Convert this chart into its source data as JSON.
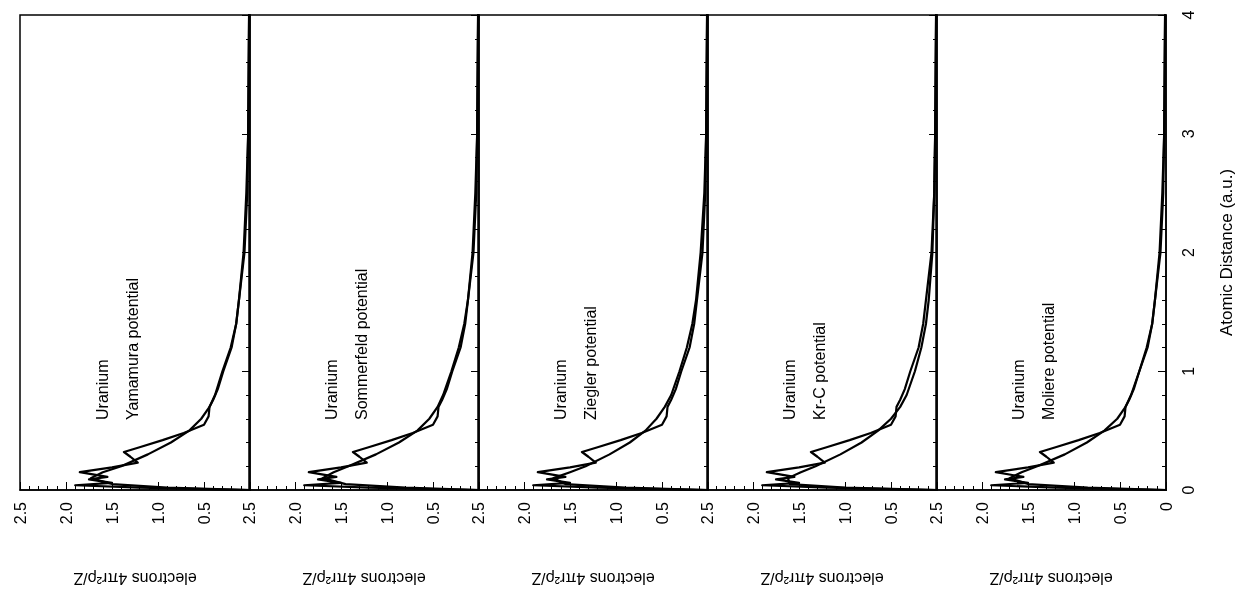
{
  "chart_data": [
    {
      "type": "line",
      "xlabel": "electrons 4πr²ρ/Z",
      "annotations": [
        "Uranium",
        "Yamamura potential"
      ],
      "xlim": [
        2.5,
        0
      ],
      "xticks": [
        2.5,
        {
          "value": 2,
          "label": "2.0"
        },
        1.5,
        {
          "value": 1,
          "label": "1.0"
        },
        0.5,
        {
          "value": 0,
          "label": null
        }
      ],
      "ylim": [
        0,
        4
      ],
      "tick_labels": "x",
      "grid": false,
      "series": [
        {
          "color": "#000000",
          "values": [
            0,
            0.02,
            0.04,
            0.06,
            0.09,
            0.11,
            0.15,
            0.19,
            0.23,
            0.28,
            0.32,
            0.36,
            0.42,
            0.48,
            0.55,
            0.62,
            0.7,
            0.76,
            0.85,
            1.0,
            1.2,
            1.4,
            1.6,
            2.0,
            2.5,
            3.0,
            4.0
          ],
          "x": [
            0,
            1.2,
            1.9,
            1.5,
            1.75,
            1.55,
            1.85,
            1.5,
            1.22,
            1.3,
            1.37,
            1.2,
            0.95,
            0.72,
            0.5,
            0.45,
            0.44,
            0.4,
            0.35,
            0.29,
            0.2,
            0.15,
            0.12,
            0.06,
            0.03,
            0.02,
            0.01
          ]
        },
        {
          "color": "#000000",
          "values": [
            0,
            0.02,
            0.05,
            0.1,
            0.15,
            0.2,
            0.3,
            0.4,
            0.5,
            0.6,
            0.7,
            0.8,
            1.0,
            1.2,
            1.4,
            1.6,
            2.0,
            2.5,
            3.0,
            4.0
          ],
          "x": [
            0,
            0.9,
            1.5,
            1.73,
            1.6,
            1.4,
            1.11,
            0.86,
            0.66,
            0.53,
            0.44,
            0.38,
            0.3,
            0.21,
            0.15,
            0.12,
            0.07,
            0.04,
            0.02,
            0.01
          ]
        }
      ]
    },
    {
      "type": "line",
      "xlabel": "electrons 4πr²ρ/Z",
      "annotations": [
        "Uranium",
        "Sommerfeld potential"
      ],
      "xlim": [
        2.5,
        0
      ],
      "xticks": [
        2.5,
        {
          "value": 2,
          "label": "2.0"
        },
        1.5,
        {
          "value": 1,
          "label": "1.0"
        },
        0.5,
        {
          "value": 0,
          "label": null
        }
      ],
      "ylim": [
        0,
        4
      ],
      "tick_labels": "x",
      "grid": false,
      "series": [
        {
          "color": "#000000",
          "values": [
            0,
            0.02,
            0.04,
            0.06,
            0.09,
            0.11,
            0.15,
            0.19,
            0.23,
            0.28,
            0.32,
            0.36,
            0.42,
            0.48,
            0.55,
            0.62,
            0.7,
            0.76,
            0.85,
            1.0,
            1.2,
            1.4,
            1.6,
            2.0,
            2.5,
            3.0,
            4.0
          ],
          "x": [
            0,
            1.2,
            1.9,
            1.5,
            1.75,
            1.55,
            1.85,
            1.5,
            1.22,
            1.3,
            1.37,
            1.2,
            0.95,
            0.72,
            0.5,
            0.45,
            0.44,
            0.4,
            0.35,
            0.29,
            0.2,
            0.15,
            0.12,
            0.06,
            0.03,
            0.02,
            0.01
          ]
        },
        {
          "color": "#000000",
          "values": [
            0,
            0.02,
            0.05,
            0.1,
            0.15,
            0.2,
            0.3,
            0.4,
            0.5,
            0.6,
            0.7,
            0.8,
            1.0,
            1.2,
            1.4,
            1.6,
            2.0,
            2.5,
            3.0,
            4.0
          ],
          "x": [
            0,
            0.8,
            1.45,
            1.7,
            1.58,
            1.42,
            1.12,
            0.87,
            0.67,
            0.54,
            0.45,
            0.39,
            0.3,
            0.22,
            0.16,
            0.12,
            0.07,
            0.04,
            0.02,
            0.01
          ]
        }
      ]
    },
    {
      "type": "line",
      "xlabel": "electrons 4πr²ρ/Z",
      "annotations": [
        "Uranium",
        "Ziegler potential"
      ],
      "xlim": [
        2.5,
        0
      ],
      "xticks": [
        2.5,
        {
          "value": 2,
          "label": "2.0"
        },
        1.5,
        {
          "value": 1,
          "label": "1.0"
        },
        0.5,
        {
          "value": 0,
          "label": null
        }
      ],
      "ylim": [
        0,
        4
      ],
      "tick_labels": "x",
      "grid": false,
      "series": [
        {
          "color": "#000000",
          "values": [
            0,
            0.02,
            0.04,
            0.06,
            0.09,
            0.11,
            0.15,
            0.19,
            0.23,
            0.28,
            0.32,
            0.36,
            0.42,
            0.48,
            0.55,
            0.62,
            0.7,
            0.76,
            0.85,
            1.0,
            1.2,
            1.4,
            1.6,
            2.0,
            2.5,
            3.0,
            4.0
          ],
          "x": [
            0,
            1.2,
            1.9,
            1.5,
            1.75,
            1.55,
            1.85,
            1.5,
            1.22,
            1.3,
            1.37,
            1.2,
            0.95,
            0.72,
            0.5,
            0.45,
            0.44,
            0.4,
            0.35,
            0.29,
            0.2,
            0.15,
            0.12,
            0.06,
            0.03,
            0.02,
            0.01
          ]
        },
        {
          "color": "#000000",
          "values": [
            0,
            0.02,
            0.05,
            0.1,
            0.15,
            0.2,
            0.3,
            0.4,
            0.5,
            0.6,
            0.7,
            0.8,
            1.0,
            1.2,
            1.4,
            1.6,
            2.0,
            2.5,
            3.0,
            4.0
          ],
          "x": [
            0,
            0.9,
            1.55,
            1.68,
            1.5,
            1.33,
            1.07,
            0.85,
            0.68,
            0.56,
            0.47,
            0.4,
            0.31,
            0.23,
            0.17,
            0.13,
            0.08,
            0.04,
            0.02,
            0.01
          ]
        }
      ]
    },
    {
      "type": "line",
      "xlabel": "electrons 4πr²ρ/Z",
      "annotations": [
        "Uranium",
        "Kr-C potential"
      ],
      "xlim": [
        2.5,
        0
      ],
      "xticks": [
        2.5,
        {
          "value": 2,
          "label": "2.0"
        },
        1.5,
        {
          "value": 1,
          "label": "1.0"
        },
        0.5,
        {
          "value": 0,
          "label": null
        }
      ],
      "ylim": [
        0,
        4
      ],
      "tick_labels": "x",
      "grid": false,
      "series": [
        {
          "color": "#000000",
          "values": [
            0,
            0.02,
            0.04,
            0.06,
            0.09,
            0.11,
            0.15,
            0.19,
            0.23,
            0.28,
            0.32,
            0.36,
            0.42,
            0.48,
            0.55,
            0.62,
            0.7,
            0.76,
            0.85,
            1.0,
            1.2,
            1.4,
            1.6,
            2.0,
            2.5,
            3.0,
            4.0
          ],
          "x": [
            0,
            1.2,
            1.9,
            1.5,
            1.75,
            1.55,
            1.85,
            1.5,
            1.22,
            1.3,
            1.37,
            1.2,
            0.95,
            0.72,
            0.5,
            0.45,
            0.44,
            0.4,
            0.35,
            0.29,
            0.2,
            0.15,
            0.12,
            0.06,
            0.03,
            0.02,
            0.01
          ]
        },
        {
          "color": "#000000",
          "values": [
            0,
            0.02,
            0.05,
            0.1,
            0.15,
            0.2,
            0.3,
            0.4,
            0.5,
            0.6,
            0.7,
            0.8,
            1.0,
            1.2,
            1.4,
            1.6,
            2.0,
            2.5,
            3.0,
            4.0
          ],
          "x": [
            0,
            1.0,
            1.6,
            1.62,
            1.48,
            1.32,
            1.05,
            0.82,
            0.64,
            0.5,
            0.4,
            0.33,
            0.24,
            0.17,
            0.12,
            0.09,
            0.05,
            0.03,
            0.02,
            0.01
          ]
        }
      ]
    },
    {
      "type": "line",
      "xlabel": "electrons 4πr²ρ/Z",
      "ylabel": "Atomic Distance (a.u.)",
      "annotations": [
        "Uranium",
        "Moliere potential"
      ],
      "xlim": [
        2.5,
        0
      ],
      "xticks": [
        2.5,
        {
          "value": 2,
          "label": "2.0"
        },
        1.5,
        {
          "value": 1,
          "label": "1.0"
        },
        0.5,
        0
      ],
      "ylim": [
        0,
        4
      ],
      "yticks": [
        0,
        1,
        2,
        3,
        4
      ],
      "grid": false,
      "series": [
        {
          "color": "#000000",
          "values": [
            0,
            0.02,
            0.04,
            0.06,
            0.09,
            0.11,
            0.15,
            0.19,
            0.23,
            0.28,
            0.32,
            0.36,
            0.42,
            0.48,
            0.55,
            0.62,
            0.7,
            0.76,
            0.85,
            1.0,
            1.2,
            1.4,
            1.6,
            2.0,
            2.5,
            3.0,
            4.0
          ],
          "x": [
            0,
            1.2,
            1.9,
            1.5,
            1.75,
            1.55,
            1.85,
            1.5,
            1.22,
            1.3,
            1.37,
            1.2,
            0.95,
            0.72,
            0.5,
            0.45,
            0.44,
            0.4,
            0.35,
            0.29,
            0.2,
            0.15,
            0.12,
            0.06,
            0.03,
            0.02,
            0.01
          ]
        },
        {
          "color": "#000000",
          "values": [
            0,
            0.02,
            0.05,
            0.1,
            0.15,
            0.2,
            0.3,
            0.4,
            0.5,
            0.6,
            0.7,
            0.8,
            1.0,
            1.2,
            1.4,
            1.6,
            2.0,
            2.5,
            3.0,
            4.0
          ],
          "x": [
            0,
            0.85,
            1.5,
            1.7,
            1.57,
            1.4,
            1.1,
            0.86,
            0.67,
            0.53,
            0.44,
            0.38,
            0.29,
            0.21,
            0.15,
            0.12,
            0.07,
            0.04,
            0.02,
            0.01
          ]
        }
      ]
    }
  ]
}
